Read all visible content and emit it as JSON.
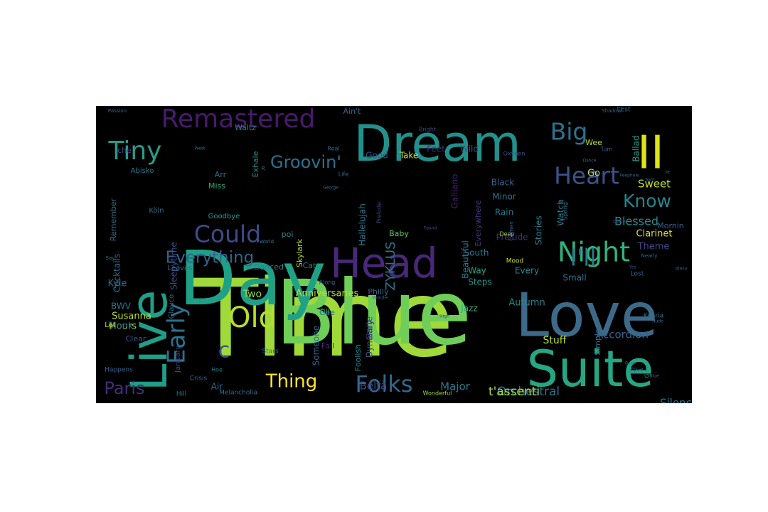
{
  "wordcloud": {
    "background": "#000000",
    "words": [
      {
        "text": "Time",
        "color": "#9fda3a"
      },
      {
        "text": "Blue",
        "color": "#6ece58"
      },
      {
        "text": "Day",
        "color": "#1fa187"
      },
      {
        "text": "Love",
        "color": "#3e6a8a"
      },
      {
        "text": "Live",
        "color": "#1f9e89"
      },
      {
        "text": "Suite",
        "color": "#26a784"
      },
      {
        "text": "Dream",
        "color": "#21918c"
      },
      {
        "text": "Head",
        "color": "#482878"
      },
      {
        "text": "II",
        "color": "#dde318"
      },
      {
        "text": "Night",
        "color": "#2fb47c"
      },
      {
        "text": "Remastered",
        "color": "#481a6c"
      },
      {
        "text": "Heart",
        "color": "#3b528b"
      },
      {
        "text": "Could",
        "color": "#3e4a89"
      },
      {
        "text": "Big",
        "color": "#2c728e"
      },
      {
        "text": "Tiny",
        "color": "#2a9a88"
      },
      {
        "text": "Old",
        "color": "#b5de2b"
      },
      {
        "text": "Early",
        "color": "#2c718e"
      },
      {
        "text": "I'll",
        "color": "#2a788e"
      },
      {
        "text": "Everything",
        "color": "#33638d"
      },
      {
        "text": "Folks",
        "color": "#31688e"
      },
      {
        "text": "Groovin'",
        "color": "#2d708e"
      },
      {
        "text": "Know",
        "color": "#24868e"
      },
      {
        "text": "Thing",
        "color": "#fde725"
      },
      {
        "text": "c",
        "color": "#3a548c"
      },
      {
        "text": "Paris",
        "color": "#472d7b"
      },
      {
        "text": "Orchestral",
        "color": "#2d718e"
      },
      {
        "text": "ZYKLUS",
        "color": "#2c738e"
      },
      {
        "text": "Major",
        "color": "#29798e"
      },
      {
        "text": "t'assenti",
        "color": "#a8db34"
      },
      {
        "text": "Accordion",
        "color": "#32658e"
      },
      {
        "text": "Blessed",
        "color": "#238a8d"
      },
      {
        "text": "Sweet",
        "color": "#c2df23"
      },
      {
        "text": "Clarinet",
        "color": "#d8e219"
      },
      {
        "text": "Theme",
        "color": "#404688"
      },
      {
        "text": "Stuff",
        "color": "#b5de2b"
      },
      {
        "text": "Autumn",
        "color": "#25848e"
      },
      {
        "text": "Silence",
        "color": "#2a768e"
      },
      {
        "text": "Hours",
        "color": "#95d840"
      },
      {
        "text": "Susanna",
        "color": "#bade28"
      },
      {
        "text": "Cocktails",
        "color": "#2e6e8e"
      },
      {
        "text": "Sleepytime",
        "color": "#3c508b"
      },
      {
        "text": "Monk",
        "color": "#2a768e"
      },
      {
        "text": "BWV",
        "color": "#2c728e"
      },
      {
        "text": "Kyle",
        "color": "#2e6d8e"
      },
      {
        "text": "Gary",
        "color": "#482475"
      },
      {
        "text": "Beltà",
        "color": "#3f4889"
      },
      {
        "text": "Air",
        "color": "#2e6e8e"
      },
      {
        "text": "Two",
        "color": "#8fd744"
      },
      {
        "text": "Anniversaries",
        "color": "#bddf26"
      },
      {
        "text": "South",
        "color": "#2a778e"
      },
      {
        "text": "Way",
        "color": "#22a785"
      },
      {
        "text": "Steps",
        "color": "#1f968b"
      },
      {
        "text": "Jazz",
        "color": "#28ae80"
      },
      {
        "text": "Beautiful",
        "color": "#2a768e"
      },
      {
        "text": "Prelude",
        "color": "#472c7a"
      },
      {
        "text": "Stories",
        "color": "#2a788e"
      },
      {
        "text": "Watch",
        "color": "#2a778e"
      },
      {
        "text": "Ballad",
        "color": "#1f9e89"
      },
      {
        "text": "Go",
        "color": "#c2df23"
      },
      {
        "text": "Take",
        "color": "#d2e21b"
      },
      {
        "text": "Feet",
        "color": "#472f7d"
      },
      {
        "text": "Wild",
        "color": "#39568c"
      },
      {
        "text": "Good",
        "color": "#3c4f8a"
      },
      {
        "text": "Black",
        "color": "#33628d"
      },
      {
        "text": "Minor",
        "color": "#2d708e"
      },
      {
        "text": "Rain",
        "color": "#2a788e"
      },
      {
        "text": "Everywhere",
        "color": "#453781"
      },
      {
        "text": "Galliano",
        "color": "#482173"
      },
      {
        "text": "Hallelujah",
        "color": "#2a768e"
      },
      {
        "text": "Skylark",
        "color": "#b8de29"
      },
      {
        "text": "Baby",
        "color": "#5cc863"
      },
      {
        "text": "Philly",
        "color": "#32648e"
      },
      {
        "text": "Gee",
        "color": "#2c738e"
      },
      {
        "text": "Till",
        "color": "#29af7f"
      },
      {
        "text": "Someone",
        "color": "#31688e"
      },
      {
        "text": "Foolish",
        "color": "#24878e"
      },
      {
        "text": "Dynamite",
        "color": "#3b528b"
      },
      {
        "text": "Fall",
        "color": "#482878"
      },
      {
        "text": "Every",
        "color": "#23898e"
      },
      {
        "text": "Small",
        "color": "#2c728e"
      },
      {
        "text": "Simple",
        "color": "#2f6b8e"
      },
      {
        "text": "Girl",
        "color": "#26828e"
      },
      {
        "text": "Mornin",
        "color": "#355f8d"
      },
      {
        "text": "Wee",
        "color": "#b5de2b"
      },
      {
        "text": "Ain't",
        "color": "#2e6e8e"
      },
      {
        "text": "Waltz",
        "color": "#27808e"
      },
      {
        "text": "Arr",
        "color": "#2c728e"
      },
      {
        "text": "Miss",
        "color": "#27ad81"
      },
      {
        "text": "Exhale",
        "color": "#238a8d"
      },
      {
        "text": "che",
        "color": "#3e4a89"
      },
      {
        "text": "Abisko",
        "color": "#2a778e"
      },
      {
        "text": "Remember",
        "color": "#2c718e"
      },
      {
        "text": "Köln",
        "color": "#31688e"
      },
      {
        "text": "Goodbye",
        "color": "#1f9a8a"
      },
      {
        "text": "Danced",
        "color": "#26828e"
      },
      {
        "text": "Leaves",
        "color": "#2c728e"
      },
      {
        "text": "Cat",
        "color": "#2a788e"
      },
      {
        "text": "poi",
        "color": "#24868e"
      },
      {
        "text": "Glauco",
        "color": "#2e6e8e"
      },
      {
        "text": "January",
        "color": "#3f4788"
      },
      {
        "text": "Clear",
        "color": "#39568c"
      },
      {
        "text": "Let",
        "color": "#c0df25"
      },
      {
        "text": "Stars",
        "color": "#2f6c8e"
      },
      {
        "text": "Hoe",
        "color": "#2a788e"
      },
      {
        "text": "Crisis",
        "color": "#31688e"
      },
      {
        "text": "Hill",
        "color": "#2a788e"
      },
      {
        "text": "Melancholia",
        "color": "#2e6e8e"
      },
      {
        "text": "Happens",
        "color": "#33638d"
      },
      {
        "text": "Wonderful",
        "color": "#9bd93c"
      },
      {
        "text": "Kenria",
        "color": "#2c728e"
      },
      {
        "text": "Gare",
        "color": "#1f958b"
      },
      {
        "text": "Along",
        "color": "#33638d"
      },
      {
        "text": "Life",
        "color": "#30698e"
      },
      {
        "text": "Lost",
        "color": "#31688e"
      },
      {
        "text": "Mood",
        "color": "#d2e21b"
      },
      {
        "text": "Spring",
        "color": "#2a778e"
      },
      {
        "text": "Deep",
        "color": "#a0da39"
      },
      {
        "text": "Prelude",
        "color": "#3f4889"
      },
      {
        "text": "Comes",
        "color": "#38598c"
      },
      {
        "text": "Real",
        "color": "#31688e"
      },
      {
        "text": "Oxygen",
        "color": "#3b528b"
      },
      {
        "text": "Bright",
        "color": "#3f4788"
      },
      {
        "text": "I'Est",
        "color": "#2e6e8e"
      },
      {
        "text": "Shadow",
        "color": "#32648e"
      },
      {
        "text": "Passion",
        "color": "#31688e"
      },
      {
        "text": "George",
        "color": "#2e6e8e"
      },
      {
        "text": "West",
        "color": "#2c728e"
      },
      {
        "text": "Dance",
        "color": "#33638d"
      },
      {
        "text": "Duke",
        "color": "#3f4788"
      },
      {
        "text": "Say",
        "color": "#2e6e8e"
      },
      {
        "text": "World",
        "color": "#2a788e"
      },
      {
        "text": "Found",
        "color": "#3b528b"
      },
      {
        "text": "Turn",
        "color": "#31688e"
      },
      {
        "text": "Pt",
        "color": "#2c728e"
      },
      {
        "text": "Sam",
        "color": "#2a788e"
      },
      {
        "text": "R",
        "color": "#2c728e"
      },
      {
        "text": "Alexa",
        "color": "#33638d"
      },
      {
        "text": "Yes",
        "color": "#3e4a89"
      },
      {
        "text": "Wonder",
        "color": "#31688e"
      },
      {
        "text": "High",
        "color": "#3f4788"
      },
      {
        "text": "Nearly",
        "color": "#2c728e"
      },
      {
        "text": "de",
        "color": "#2e6e8e"
      },
      {
        "text": "Peephole",
        "color": "#32648e"
      },
      {
        "text": "Blue",
        "color": "#2a788e"
      },
      {
        "text": "Bass",
        "color": "#33638d"
      },
      {
        "text": "Nude",
        "color": "#31688e"
      }
    ]
  }
}
